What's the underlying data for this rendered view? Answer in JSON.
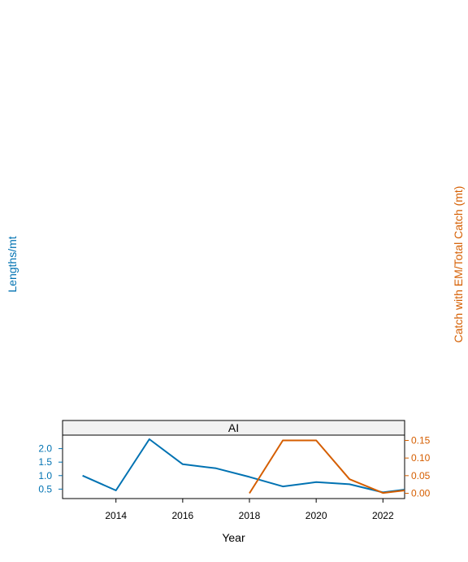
{
  "chart_data": {
    "type": "line",
    "panel": "AI",
    "xlabel": "Year",
    "ylabel_left": "Lengths/mt",
    "ylabel_right": "Catch with EM/Total Catch (mt)",
    "x_ticks": [
      2014,
      2016,
      2018,
      2020,
      2022
    ],
    "y_left_ticks": [
      "0.5",
      "1.0",
      "1.5",
      "2.0"
    ],
    "y_right_ticks": [
      "0.00",
      "0.05",
      "0.10",
      "0.15"
    ],
    "xlim": [
      2012.4,
      2022.65
    ],
    "ylim_left": [
      0.15,
      2.5
    ],
    "ylim_right": [
      -0.015,
      0.165
    ],
    "colors": {
      "left": "#0072B2",
      "right": "#D55E00"
    },
    "series": [
      {
        "axis": "left",
        "x": [
          2013,
          2014,
          2015,
          2016,
          2017,
          2018,
          2019,
          2020,
          2021,
          2022,
          2022.65
        ],
        "values": [
          1.0,
          0.45,
          2.35,
          1.42,
          1.27,
          0.95,
          0.6,
          0.76,
          0.68,
          0.38,
          0.48
        ]
      },
      {
        "axis": "right",
        "x": [
          2018,
          2019,
          2020,
          2021,
          2022,
          2022.65
        ],
        "values": [
          0.0,
          0.15,
          0.15,
          0.04,
          0.001,
          0.008
        ]
      }
    ]
  }
}
